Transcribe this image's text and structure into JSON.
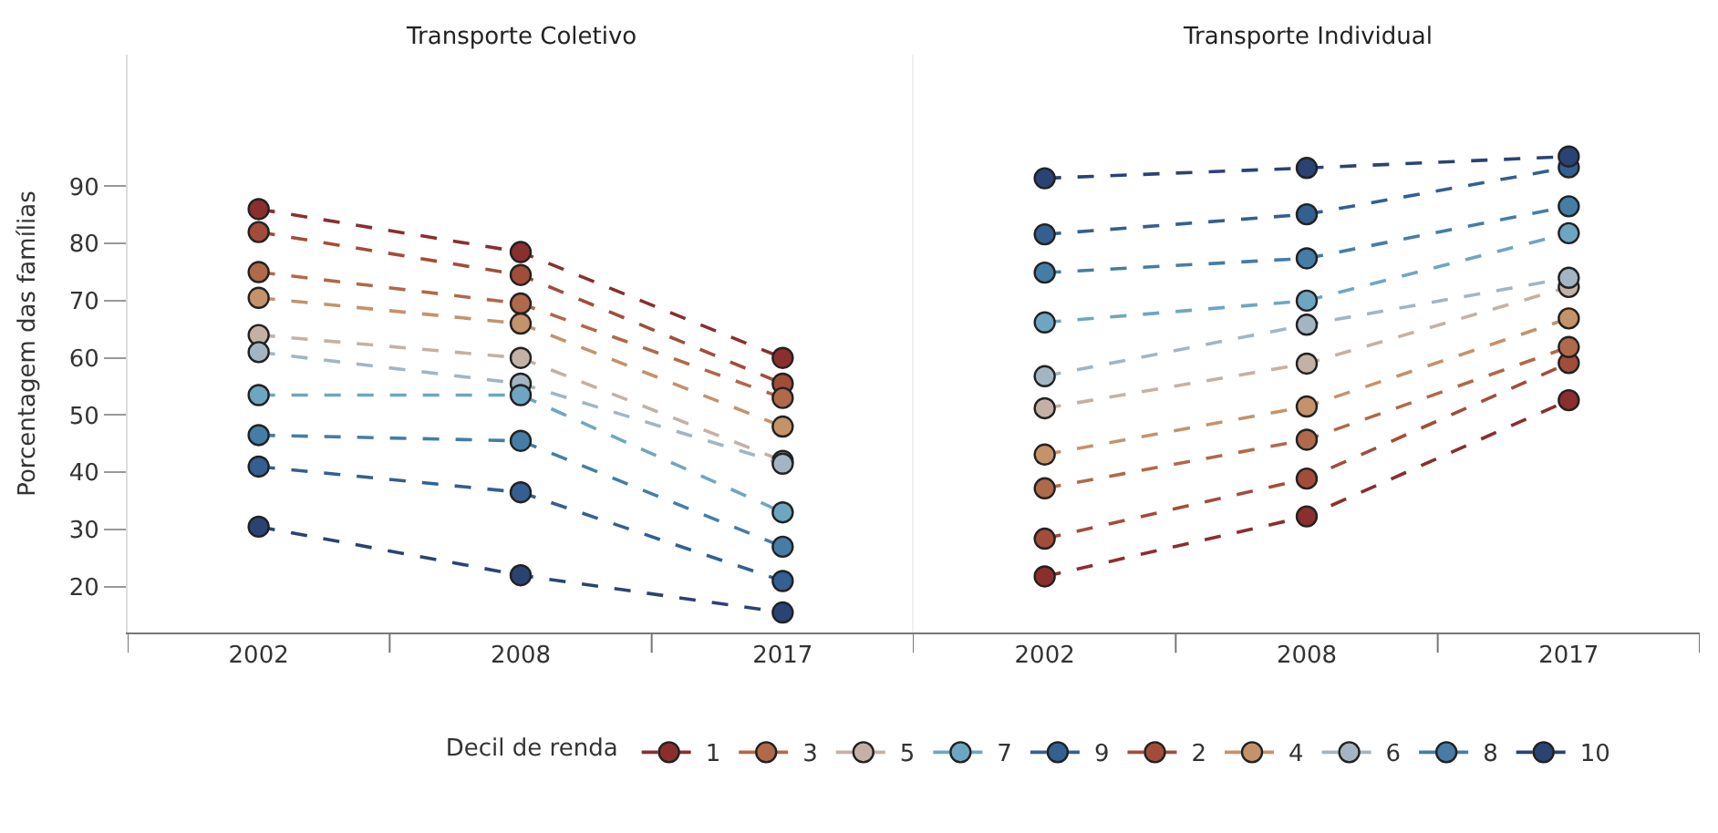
{
  "chart_data": [
    {
      "type": "line",
      "title": "Transporte Coletivo",
      "ylabel": "Porcentagem das famílias",
      "legend_title": "Decil de renda",
      "categories": [
        "2002",
        "2008",
        "2017"
      ],
      "ylim": [
        12,
        113
      ],
      "yticks": [
        20,
        30,
        40,
        50,
        60,
        70,
        80,
        90
      ],
      "grid": false,
      "legend": "bottom",
      "marker": "circle",
      "line_style": "dashed",
      "series": [
        {
          "name": "1",
          "color": "#8b2e2e",
          "values": [
            86,
            78.5,
            60
          ]
        },
        {
          "name": "2",
          "color": "#a24d3a",
          "values": [
            82,
            74.5,
            55.5
          ]
        },
        {
          "name": "3",
          "color": "#b0694a",
          "values": [
            75,
            69.5,
            53
          ]
        },
        {
          "name": "4",
          "color": "#c4936a",
          "values": [
            70.5,
            66,
            48
          ]
        },
        {
          "name": "5",
          "color": "#c4b1a6",
          "values": [
            64,
            60,
            42
          ]
        },
        {
          "name": "6",
          "color": "#a3b5c2",
          "values": [
            61,
            55.5,
            41.5
          ]
        },
        {
          "name": "7",
          "color": "#6ea6c2",
          "values": [
            53.5,
            53.5,
            33
          ]
        },
        {
          "name": "8",
          "color": "#457da6",
          "values": [
            46.5,
            45.5,
            27
          ]
        },
        {
          "name": "9",
          "color": "#345f91",
          "values": [
            41,
            36.5,
            21
          ]
        },
        {
          "name": "10",
          "color": "#2a4373",
          "values": [
            30.5,
            22,
            15.5
          ]
        }
      ]
    },
    {
      "type": "line",
      "title": "Transporte Individual",
      "categories": [
        "2002",
        "2008",
        "2017"
      ],
      "ylim": [
        12,
        113
      ],
      "yticks": [
        20,
        30,
        40,
        50,
        60,
        70,
        80,
        90
      ],
      "tick_labels": "x",
      "grid": false,
      "marker": "circle",
      "line_style": "dashed",
      "series": [
        {
          "name": "1",
          "color": "#8b2e2e",
          "values": [
            21.8,
            32.3,
            52.6
          ]
        },
        {
          "name": "2",
          "color": "#a24d3a",
          "values": [
            28.4,
            38.9,
            59.1
          ]
        },
        {
          "name": "3",
          "color": "#b0694a",
          "values": [
            37.2,
            45.7,
            61.9
          ]
        },
        {
          "name": "4",
          "color": "#c4936a",
          "values": [
            43.1,
            51.5,
            66.9
          ]
        },
        {
          "name": "5",
          "color": "#c4b1a6",
          "values": [
            51.2,
            59,
            72.4
          ]
        },
        {
          "name": "6",
          "color": "#a3b5c2",
          "values": [
            56.8,
            65.8,
            74
          ]
        },
        {
          "name": "7",
          "color": "#6ea6c2",
          "values": [
            66.2,
            70,
            81.8
          ]
        },
        {
          "name": "8",
          "color": "#457da6",
          "values": [
            74.9,
            77.4,
            86.5
          ]
        },
        {
          "name": "9",
          "color": "#345f91",
          "values": [
            81.6,
            85.1,
            93.3
          ]
        },
        {
          "name": "10",
          "color": "#2a4373",
          "values": [
            91.4,
            93.2,
            95.2
          ]
        }
      ]
    }
  ]
}
